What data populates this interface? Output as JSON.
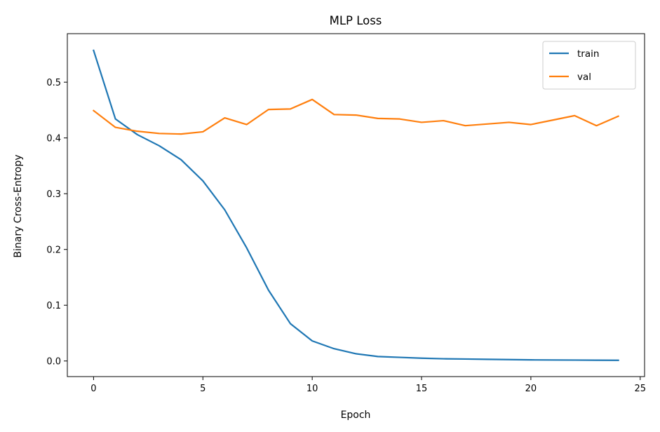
{
  "chart_data": {
    "type": "line",
    "title": "MLP Loss",
    "xlabel": "Epoch",
    "ylabel": "Binary Cross-Entropy",
    "xlim": [
      -1.2,
      25.2
    ],
    "ylim": [
      -0.028,
      0.587
    ],
    "xticks": [
      0,
      5,
      10,
      15,
      20,
      25
    ],
    "yticks": [
      0.0,
      0.1,
      0.2,
      0.3,
      0.4,
      0.5
    ],
    "xtick_labels": [
      "0",
      "5",
      "10",
      "15",
      "20",
      "25"
    ],
    "ytick_labels": [
      "0.0",
      "0.1",
      "0.2",
      "0.3",
      "0.4",
      "0.5"
    ],
    "grid": false,
    "legend_position": "top-right",
    "x": [
      0,
      1,
      2,
      3,
      4,
      5,
      6,
      7,
      8,
      9,
      10,
      11,
      12,
      13,
      14,
      15,
      16,
      17,
      18,
      19,
      20,
      21,
      22,
      23,
      24
    ],
    "series": [
      {
        "name": "train",
        "color": "#1f77b4",
        "values": [
          0.557,
          0.434,
          0.406,
          0.386,
          0.361,
          0.323,
          0.271,
          0.203,
          0.127,
          0.067,
          0.036,
          0.022,
          0.013,
          0.008,
          0.0065,
          0.005,
          0.004,
          0.0035,
          0.003,
          0.0025,
          0.002,
          0.0018,
          0.0016,
          0.0014,
          0.0012
        ]
      },
      {
        "name": "val",
        "color": "#ff7f0e",
        "values": [
          0.449,
          0.419,
          0.412,
          0.408,
          0.407,
          0.411,
          0.436,
          0.424,
          0.451,
          0.452,
          0.469,
          0.442,
          0.441,
          0.435,
          0.434,
          0.428,
          0.431,
          0.422,
          0.425,
          0.428,
          0.424,
          0.432,
          0.44,
          0.422,
          0.439
        ]
      }
    ]
  }
}
